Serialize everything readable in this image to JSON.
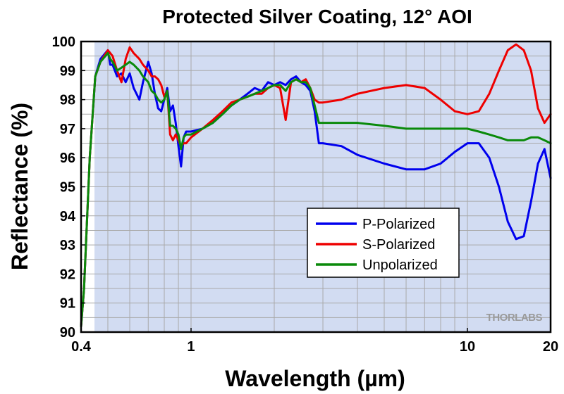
{
  "chart_data": {
    "type": "line",
    "title": "Protected Silver Coating, 12° AOI",
    "xlabel": "Wavelength (µm)",
    "ylabel": "Reflectance (%)",
    "xscale": "log",
    "xlim": [
      0.4,
      20
    ],
    "ylim": [
      90,
      100
    ],
    "x_ticks": [
      {
        "value": 0.4,
        "label": "0.4"
      },
      {
        "value": 1,
        "label": "1"
      },
      {
        "value": 10,
        "label": "10"
      },
      {
        "value": 20,
        "label": "20"
      }
    ],
    "y_ticks": [
      90,
      91,
      92,
      93,
      94,
      95,
      96,
      97,
      98,
      99,
      100
    ],
    "grid": true,
    "legend_position": "right-center",
    "watermark": "THORLABS",
    "series": [
      {
        "name": "P-Polarized",
        "color": "#0000ee",
        "x": [
          0.4,
          0.41,
          0.43,
          0.45,
          0.47,
          0.5,
          0.51,
          0.52,
          0.54,
          0.56,
          0.58,
          0.6,
          0.62,
          0.65,
          0.67,
          0.7,
          0.72,
          0.74,
          0.76,
          0.78,
          0.8,
          0.82,
          0.84,
          0.86,
          0.88,
          0.9,
          0.92,
          0.94,
          0.96,
          1.0,
          1.1,
          1.2,
          1.3,
          1.4,
          1.5,
          1.6,
          1.7,
          1.8,
          1.9,
          2.0,
          2.1,
          2.2,
          2.3,
          2.4,
          2.5,
          2.6,
          2.7,
          2.8,
          2.9,
          3.0,
          3.5,
          4.0,
          5.0,
          6.0,
          7.0,
          8.0,
          9.0,
          10.0,
          11.0,
          12.0,
          13.0,
          14.0,
          15.0,
          16.0,
          17.0,
          18.0,
          19.0,
          20.0
        ],
        "values": [
          90.2,
          91.5,
          96.0,
          98.8,
          99.4,
          99.7,
          99.2,
          99.2,
          98.8,
          98.9,
          98.6,
          98.9,
          98.4,
          98.0,
          98.6,
          99.3,
          98.9,
          98.2,
          97.7,
          97.6,
          98.0,
          98.4,
          97.6,
          97.8,
          97.2,
          96.4,
          95.7,
          96.7,
          96.9,
          96.9,
          97.0,
          97.2,
          97.6,
          97.8,
          98.0,
          98.2,
          98.4,
          98.3,
          98.6,
          98.5,
          98.6,
          98.5,
          98.7,
          98.8,
          98.6,
          98.5,
          98.3,
          97.6,
          96.5,
          96.5,
          96.4,
          96.1,
          95.8,
          95.6,
          95.6,
          95.8,
          96.2,
          96.5,
          96.5,
          96.0,
          95.0,
          93.8,
          93.2,
          93.3,
          94.5,
          95.8,
          96.3,
          95.3
        ]
      },
      {
        "name": "S-Polarized",
        "color": "#ee0000",
        "x": [
          0.4,
          0.41,
          0.43,
          0.45,
          0.47,
          0.5,
          0.51,
          0.52,
          0.54,
          0.56,
          0.58,
          0.6,
          0.62,
          0.65,
          0.67,
          0.7,
          0.72,
          0.74,
          0.76,
          0.78,
          0.8,
          0.82,
          0.84,
          0.86,
          0.88,
          0.9,
          0.92,
          0.94,
          0.96,
          1.0,
          1.1,
          1.2,
          1.3,
          1.4,
          1.5,
          1.6,
          1.7,
          1.8,
          1.9,
          2.0,
          2.1,
          2.2,
          2.3,
          2.4,
          2.5,
          2.6,
          2.7,
          2.8,
          2.9,
          3.0,
          3.5,
          4.0,
          5.0,
          6.0,
          7.0,
          8.0,
          9.0,
          10.0,
          11.0,
          12.0,
          13.0,
          14.0,
          15.0,
          16.0,
          17.0,
          18.0,
          19.0,
          20.0
        ],
        "values": [
          90.2,
          91.5,
          96.0,
          98.8,
          99.3,
          99.7,
          99.6,
          99.5,
          99.0,
          98.6,
          99.4,
          99.8,
          99.6,
          99.4,
          99.2,
          99.0,
          98.8,
          98.8,
          98.7,
          98.5,
          98.1,
          98.3,
          96.8,
          96.6,
          96.8,
          96.6,
          96.4,
          96.5,
          96.5,
          96.7,
          97.0,
          97.3,
          97.6,
          97.9,
          98.0,
          98.1,
          98.2,
          98.2,
          98.4,
          98.5,
          98.4,
          97.3,
          98.6,
          98.7,
          98.6,
          98.7,
          98.4,
          98.0,
          97.9,
          97.9,
          98.0,
          98.2,
          98.4,
          98.5,
          98.4,
          98.0,
          97.6,
          97.5,
          97.6,
          98.2,
          99.0,
          99.7,
          99.9,
          99.7,
          99.0,
          97.7,
          97.2,
          97.5
        ]
      },
      {
        "name": "Unpolarized",
        "color": "#0a8a0a",
        "x": [
          0.4,
          0.41,
          0.43,
          0.45,
          0.47,
          0.5,
          0.51,
          0.52,
          0.54,
          0.56,
          0.58,
          0.6,
          0.62,
          0.65,
          0.67,
          0.7,
          0.72,
          0.74,
          0.76,
          0.78,
          0.8,
          0.82,
          0.84,
          0.86,
          0.88,
          0.9,
          0.92,
          0.94,
          0.96,
          1.0,
          1.1,
          1.2,
          1.3,
          1.4,
          1.5,
          1.6,
          1.7,
          1.8,
          1.9,
          2.0,
          2.1,
          2.2,
          2.3,
          2.4,
          2.5,
          2.6,
          2.7,
          2.8,
          2.9,
          3.0,
          3.5,
          4.0,
          5.0,
          6.0,
          7.0,
          8.0,
          9.0,
          10.0,
          11.0,
          12.0,
          13.0,
          14.0,
          15.0,
          16.0,
          17.0,
          18.0,
          19.0,
          20.0
        ],
        "values": [
          90.2,
          91.5,
          96.0,
          98.8,
          99.3,
          99.6,
          99.4,
          99.3,
          99.0,
          99.1,
          99.2,
          99.3,
          99.2,
          99.0,
          98.8,
          98.6,
          98.3,
          98.2,
          98.0,
          97.9,
          98.0,
          98.3,
          97.1,
          97.1,
          97.0,
          96.8,
          96.3,
          96.7,
          96.8,
          96.8,
          97.0,
          97.2,
          97.5,
          97.8,
          98.0,
          98.1,
          98.2,
          98.3,
          98.4,
          98.5,
          98.5,
          98.3,
          98.6,
          98.7,
          98.6,
          98.6,
          98.4,
          97.8,
          97.2,
          97.2,
          97.2,
          97.2,
          97.1,
          97.0,
          97.0,
          97.0,
          97.0,
          97.0,
          96.9,
          96.8,
          96.7,
          96.6,
          96.6,
          96.6,
          96.7,
          96.7,
          96.6,
          96.5
        ]
      }
    ]
  }
}
